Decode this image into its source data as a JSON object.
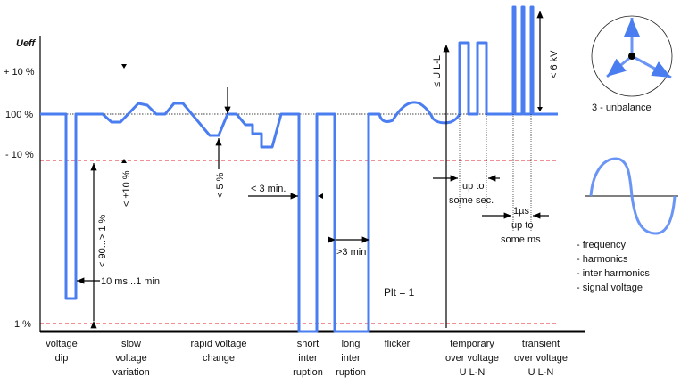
{
  "axis": {
    "title": "Ueff",
    "ticks": [
      "+ 10 %",
      "100 %",
      "- 10 %",
      "1 %"
    ]
  },
  "annotations": {
    "dip_depth": "< 90...> 1 %",
    "dip_duration": "10 ms...1 min",
    "slow_range": "< ±10 %",
    "rapid_range": "< 5 %",
    "short_duration": "< 3 min.",
    "long_duration": ">3 min",
    "flicker": "Plt = 1",
    "temp_level": "≤ U L-L",
    "temp_duration_1": "up to",
    "temp_duration_2": "some sec.",
    "transient_level": "< 6 kV",
    "transient_duration_1": "1µs",
    "transient_duration_2": "up to",
    "transient_duration_3": "some ms"
  },
  "categories": [
    {
      "lines": [
        "voltage",
        "dip"
      ]
    },
    {
      "lines": [
        "slow",
        "voltage",
        "variation"
      ]
    },
    {
      "lines": [
        "rapid voltage",
        "change"
      ]
    },
    {
      "lines": [
        "short",
        "inter",
        "ruption"
      ]
    },
    {
      "lines": [
        "long",
        "inter",
        "ruption"
      ]
    },
    {
      "lines": [
        "flicker"
      ]
    },
    {
      "lines": [
        "temporary",
        "over voltage",
        "U L-N"
      ]
    },
    {
      "lines": [
        "transient",
        "over voltage",
        "U L-N"
      ]
    }
  ],
  "unbalance": {
    "label": "3 - unbalance"
  },
  "other_list": [
    "- frequency",
    "- harmonics",
    "- inter harmonics",
    "- signal voltage"
  ],
  "colors": {
    "waveform": "#4a7df0",
    "limit_line": "#e0202a",
    "axis": "#000000"
  }
}
